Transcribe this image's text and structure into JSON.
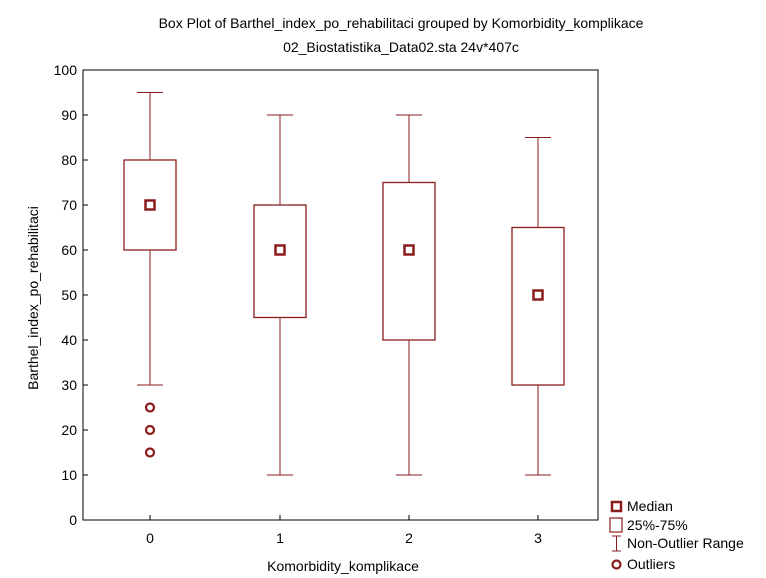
{
  "chart_data": {
    "type": "box",
    "title": "Box Plot of Barthel_index_po_rehabilitaci grouped by  Komorbidity_komplikace",
    "subtitle": "02_Biostatistika_Data02.sta 24v*407c",
    "xlabel": "Komorbidity_komplikace",
    "ylabel": "Barthel_index_po_rehabilitaci",
    "ylim": [
      0,
      100
    ],
    "yticks": [
      "0",
      "10",
      "20",
      "30",
      "40",
      "50",
      "60",
      "70",
      "80",
      "90",
      "100"
    ],
    "categories": [
      "0",
      "1",
      "2",
      "3"
    ],
    "boxes": [
      {
        "category": "0",
        "median": 70,
        "q1": 60,
        "q3": 80,
        "whisker_low": 30,
        "whisker_high": 95,
        "outliers": [
          25,
          20,
          15
        ]
      },
      {
        "category": "1",
        "median": 60,
        "q1": 45,
        "q3": 70,
        "whisker_low": 10,
        "whisker_high": 90,
        "outliers": []
      },
      {
        "category": "2",
        "median": 60,
        "q1": 40,
        "q3": 75,
        "whisker_low": 10,
        "whisker_high": 90,
        "outliers": []
      },
      {
        "category": "3",
        "median": 50,
        "q1": 30,
        "q3": 65,
        "whisker_low": 10,
        "whisker_high": 85,
        "outliers": []
      }
    ],
    "legend": {
      "position": "bottom-right",
      "items": [
        "Median",
        "25%-75%",
        "Non-Outlier Range",
        "Outliers"
      ]
    },
    "grid": false,
    "color": "#8b1c1c"
  }
}
